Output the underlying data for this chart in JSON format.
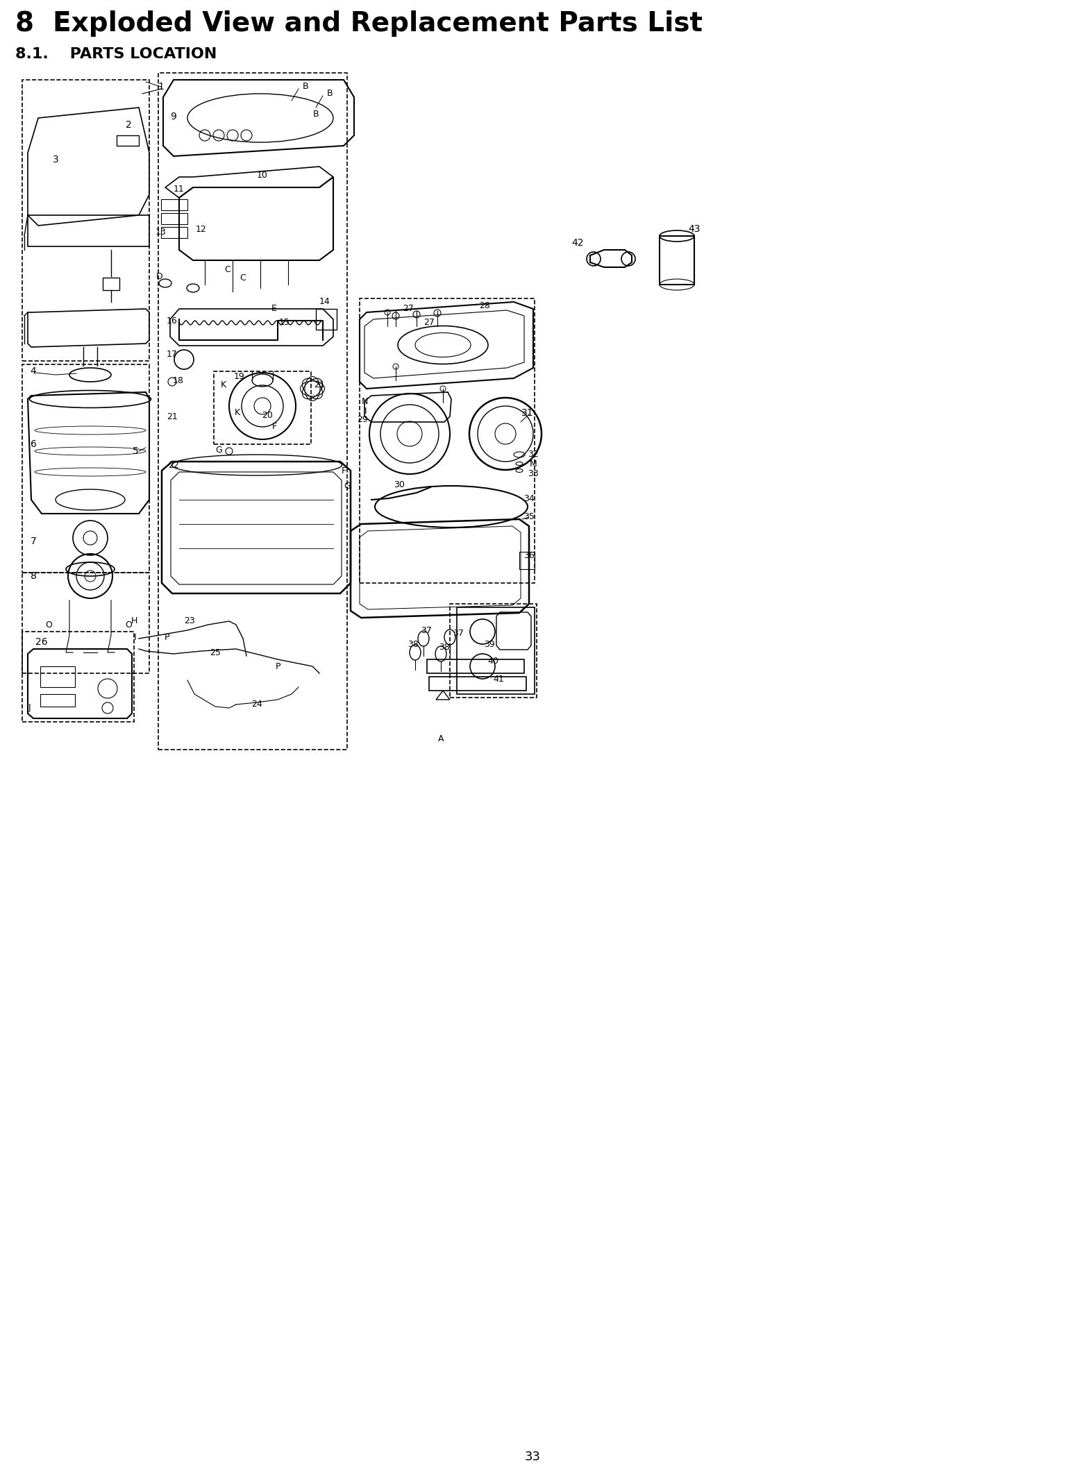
{
  "title_line1": "8  Exploded View and Replacement Parts List",
  "subtitle": "8.1.    PARTS LOCATION",
  "page_number": "33",
  "bg_color": "#ffffff",
  "title_fontsize": 28,
  "subtitle_fontsize": 16,
  "page_number_fontsize": 13,
  "fig_width": 15.34,
  "fig_height": 21.28,
  "dpi": 100
}
